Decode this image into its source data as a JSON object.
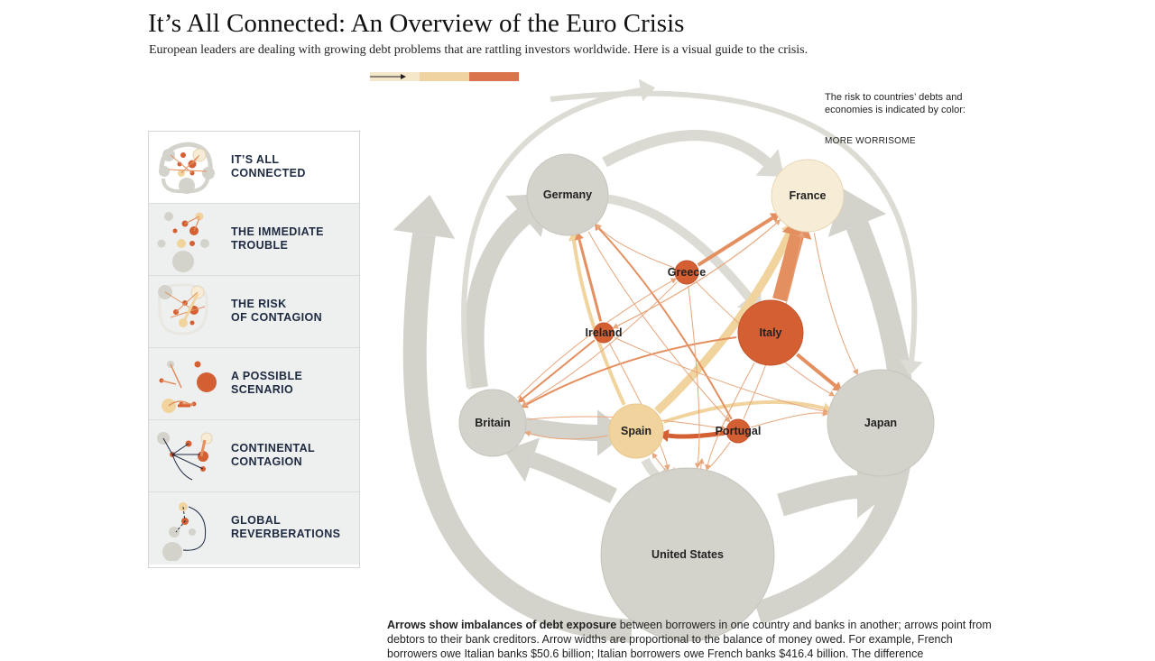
{
  "page": {
    "title": "It’s All Connected: An Overview of the Euro Crisis",
    "subtitle": "European leaders are dealing with growing debt problems that are rattling investors worldwide. Here is a visual guide to the crisis."
  },
  "sidebar": {
    "items": [
      {
        "label": "IT’S ALL\nCONNECTED",
        "active": true
      },
      {
        "label": "THE IMMEDIATE\nTROUBLE",
        "active": false
      },
      {
        "label": "THE RISK\nOF CONTAGION",
        "active": false
      },
      {
        "label": "A POSSIBLE\nSCENARIO",
        "active": false
      },
      {
        "label": "CONTINENTAL\nCONTAGION",
        "active": false
      },
      {
        "label": "GLOBAL\nREVERBERATIONS",
        "active": false
      }
    ]
  },
  "legend": {
    "text": "The risk to countries’ debts and economies is indicated by color:",
    "more_label": "MORE WORRISOME",
    "colors": [
      "#f4e7ca",
      "#efd3a0",
      "#e0986a",
      "#d05e33"
    ]
  },
  "colors": {
    "gray": "#d3d2cb",
    "gray_stroke": "#c6c5bd",
    "pale": "#f7ecd6",
    "tan": "#f0d39d",
    "orange": "#e48f5f",
    "red": "#d45f33",
    "arrow_thin": "#e7a57b"
  },
  "diagram": {
    "nodes": [
      {
        "id": "germany",
        "label": "Germany",
        "color": "gray"
      },
      {
        "id": "france",
        "label": "France",
        "color": "pale"
      },
      {
        "id": "greece",
        "label": "Greece",
        "color": "red"
      },
      {
        "id": "ireland",
        "label": "Ireland",
        "color": "red"
      },
      {
        "id": "italy",
        "label": "Italy",
        "color": "red"
      },
      {
        "id": "britain",
        "label": "Britain",
        "color": "gray"
      },
      {
        "id": "spain",
        "label": "Spain",
        "color": "tan"
      },
      {
        "id": "portugal",
        "label": "Portugal",
        "color": "red"
      },
      {
        "id": "japan",
        "label": "Japan",
        "color": "gray"
      },
      {
        "id": "us",
        "label": "United States",
        "color": "gray"
      }
    ]
  },
  "description": {
    "bold": "Arrows show imbalances of debt exposure",
    "text": " between borrowers in one country and banks in another; arrows point from debtors to their bank creditors. Arrow widths are proportional to the balance of money owed. For example, French borrowers owe Italian banks $50.6 billion; Italian borrowers owe French banks $416.4 billion. The difference"
  }
}
